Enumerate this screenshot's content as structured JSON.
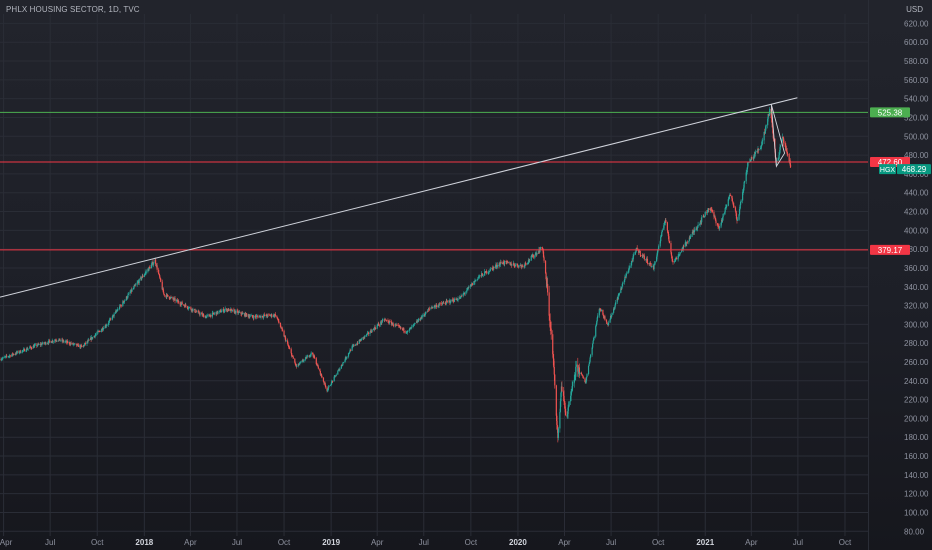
{
  "header": {
    "title": "PHLX HOUSING SECTOR, 1D, TVC",
    "currency": "USD"
  },
  "colors": {
    "background": "#1d1f27",
    "grid": "#2a2d36",
    "axis_text": "#8f93a0",
    "up": "#26a69a",
    "down": "#ef5350",
    "trendline": "#d1d4dc",
    "green_level": "#4caf50",
    "red_level": "#f23645",
    "price_tag": "#089981"
  },
  "chart_data": {
    "type": "candlestick",
    "symbol": "HGX",
    "title": "PHLX HOUSING SECTOR, 1D, TVC",
    "ylim": [
      75,
      630
    ],
    "y_ticks": [
      "80.00",
      "100.00",
      "120.00",
      "140.00",
      "160.00",
      "180.00",
      "200.00",
      "220.00",
      "240.00",
      "260.00",
      "280.00",
      "300.00",
      "320.00",
      "340.00",
      "360.00",
      "380.00",
      "400.00",
      "420.00",
      "440.00",
      "460.00",
      "480.00",
      "500.00",
      "520.00",
      "540.00",
      "560.00",
      "580.00",
      "600.00",
      "620.00"
    ],
    "x_range": [
      "2017-03-25",
      "2021-11-15"
    ],
    "x_ticks": [
      {
        "date": "2017-04-01",
        "label": "Apr",
        "bold": false
      },
      {
        "date": "2017-07-01",
        "label": "Jul",
        "bold": false
      },
      {
        "date": "2017-10-01",
        "label": "Oct",
        "bold": false
      },
      {
        "date": "2018-01-01",
        "label": "2018",
        "bold": true
      },
      {
        "date": "2018-04-01",
        "label": "Apr",
        "bold": false
      },
      {
        "date": "2018-07-01",
        "label": "Jul",
        "bold": false
      },
      {
        "date": "2018-10-01",
        "label": "Oct",
        "bold": false
      },
      {
        "date": "2019-01-01",
        "label": "2019",
        "bold": true
      },
      {
        "date": "2019-04-01",
        "label": "Apr",
        "bold": false
      },
      {
        "date": "2019-07-01",
        "label": "Jul",
        "bold": false
      },
      {
        "date": "2019-10-01",
        "label": "Oct",
        "bold": false
      },
      {
        "date": "2020-01-01",
        "label": "2020",
        "bold": true
      },
      {
        "date": "2020-04-01",
        "label": "Apr",
        "bold": false
      },
      {
        "date": "2020-07-01",
        "label": "Jul",
        "bold": false
      },
      {
        "date": "2020-10-01",
        "label": "Oct",
        "bold": false
      },
      {
        "date": "2021-01-01",
        "label": "2021",
        "bold": true
      },
      {
        "date": "2021-04-01",
        "label": "Apr",
        "bold": false
      },
      {
        "date": "2021-07-01",
        "label": "Jul",
        "bold": false
      },
      {
        "date": "2021-10-01",
        "label": "Oct",
        "bold": false
      }
    ],
    "price_path": [
      {
        "date": "2017-03-25",
        "close": 263
      },
      {
        "date": "2017-06-01",
        "close": 277
      },
      {
        "date": "2017-07-15",
        "close": 284
      },
      {
        "date": "2017-09-01",
        "close": 276
      },
      {
        "date": "2017-10-20",
        "close": 300
      },
      {
        "date": "2017-12-10",
        "close": 338
      },
      {
        "date": "2018-01-22",
        "close": 368
      },
      {
        "date": "2018-02-08",
        "close": 332
      },
      {
        "date": "2018-03-15",
        "close": 322
      },
      {
        "date": "2018-05-01",
        "close": 308
      },
      {
        "date": "2018-06-10",
        "close": 316
      },
      {
        "date": "2018-08-01",
        "close": 308
      },
      {
        "date": "2018-09-15",
        "close": 310
      },
      {
        "date": "2018-10-25",
        "close": 255
      },
      {
        "date": "2018-11-25",
        "close": 270
      },
      {
        "date": "2018-12-24",
        "close": 230
      },
      {
        "date": "2019-02-10",
        "close": 275
      },
      {
        "date": "2019-04-15",
        "close": 305
      },
      {
        "date": "2019-05-30",
        "close": 292
      },
      {
        "date": "2019-07-15",
        "close": 318
      },
      {
        "date": "2019-09-10",
        "close": 328
      },
      {
        "date": "2019-10-15",
        "close": 350
      },
      {
        "date": "2019-12-01",
        "close": 366
      },
      {
        "date": "2020-01-10",
        "close": 362
      },
      {
        "date": "2020-02-18",
        "close": 382
      },
      {
        "date": "2020-02-27",
        "close": 338
      },
      {
        "date": "2020-03-10",
        "close": 262
      },
      {
        "date": "2020-03-19",
        "close": 178
      },
      {
        "date": "2020-03-26",
        "close": 235
      },
      {
        "date": "2020-04-05",
        "close": 200
      },
      {
        "date": "2020-04-25",
        "close": 256
      },
      {
        "date": "2020-05-12",
        "close": 238
      },
      {
        "date": "2020-06-08",
        "close": 318
      },
      {
        "date": "2020-06-25",
        "close": 300
      },
      {
        "date": "2020-07-25",
        "close": 345
      },
      {
        "date": "2020-08-20",
        "close": 380
      },
      {
        "date": "2020-09-22",
        "close": 360
      },
      {
        "date": "2020-10-15",
        "close": 412
      },
      {
        "date": "2020-10-30",
        "close": 365
      },
      {
        "date": "2020-12-05",
        "close": 395
      },
      {
        "date": "2021-01-10",
        "close": 425
      },
      {
        "date": "2021-01-28",
        "close": 402
      },
      {
        "date": "2021-02-20",
        "close": 440
      },
      {
        "date": "2021-03-05",
        "close": 410
      },
      {
        "date": "2021-03-25",
        "close": 470
      },
      {
        "date": "2021-04-20",
        "close": 490
      },
      {
        "date": "2021-05-08",
        "close": 530
      },
      {
        "date": "2021-05-20",
        "close": 470
      },
      {
        "date": "2021-06-01",
        "close": 498
      },
      {
        "date": "2021-06-10",
        "close": 480
      },
      {
        "date": "2021-06-17",
        "close": 468.29
      }
    ],
    "trendline": [
      {
        "date": "2017-03-25",
        "price": 329
      },
      {
        "date": "2021-06-30",
        "price": 541
      }
    ],
    "triangle_pattern": [
      {
        "date": "2021-05-10",
        "price": 534
      },
      {
        "date": "2021-06-05",
        "price": 482
      },
      {
        "date": "2021-05-20",
        "price": 468
      }
    ],
    "levels": [
      {
        "price": 525.38,
        "label": "525.38",
        "color": "green"
      },
      {
        "price": 472.6,
        "label": "472.60",
        "color": "red"
      },
      {
        "price": 379.17,
        "label": "379.17",
        "color": "red"
      }
    ],
    "last_price": {
      "symbol": "HGX",
      "price": 468.29,
      "label": "468.29"
    }
  }
}
